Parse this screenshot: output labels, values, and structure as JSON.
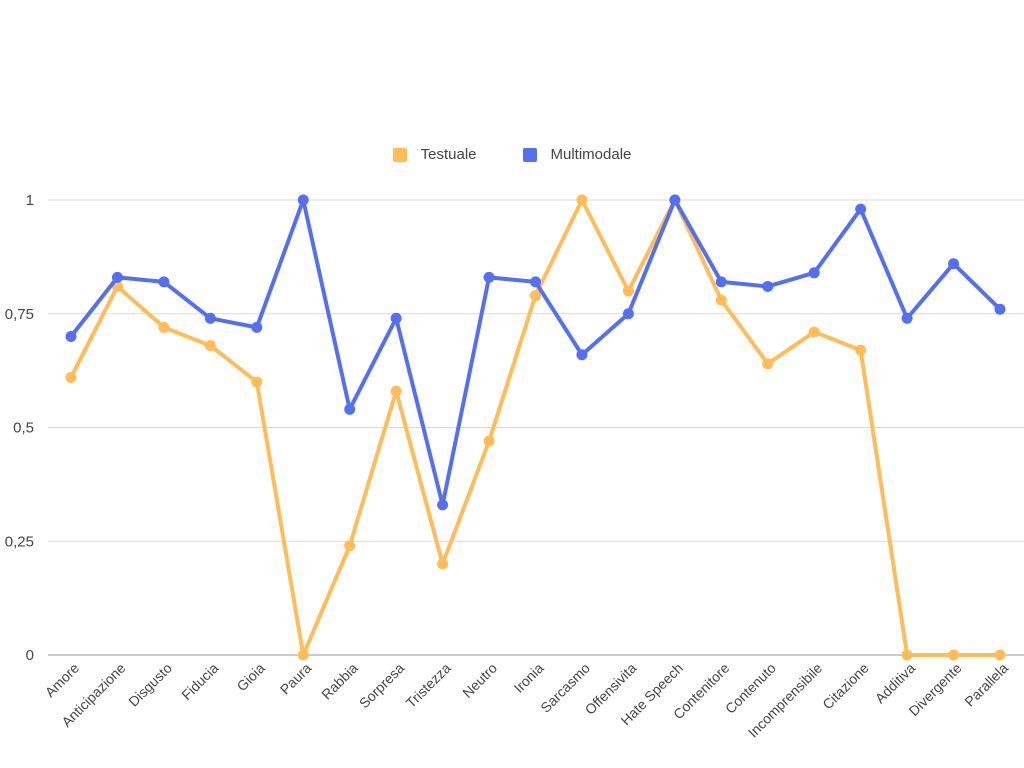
{
  "chart_data": {
    "type": "line",
    "categories": [
      "Amore",
      "Anticipazione",
      "Disgusto",
      "Fiducia",
      "Gioia",
      "Paura",
      "Rabbia",
      "Sorpresa",
      "Tristezza",
      "Neutro",
      "Ironia",
      "Sarcasmo",
      "Offensivita",
      "Hate Speech",
      "Contenitore",
      "Contenuto",
      "Incomprensibile",
      "Citazione",
      "Additiva",
      "Divergente",
      "Parallela"
    ],
    "series": [
      {
        "name": "Testuale",
        "color": "#FFBC57",
        "values": [
          0.61,
          0.81,
          0.72,
          0.68,
          0.6,
          0.0,
          0.24,
          0.58,
          0.2,
          0.47,
          0.79,
          1.0,
          0.8,
          1.0,
          0.78,
          0.64,
          0.71,
          0.67,
          0.0,
          0.0,
          0.0
        ]
      },
      {
        "name": "Multimodale",
        "color": "#5470F2",
        "values": [
          0.7,
          0.83,
          0.82,
          0.74,
          0.72,
          1.0,
          0.54,
          0.74,
          0.33,
          0.83,
          0.82,
          0.66,
          0.75,
          1.0,
          0.82,
          0.81,
          0.84,
          0.98,
          0.74,
          0.86,
          0.76
        ]
      }
    ],
    "y_ticks": [
      "0",
      "0,25",
      "0,5",
      "0,75",
      "1"
    ],
    "ylim": [
      0,
      1
    ],
    "grid": true,
    "legend_position": "top"
  }
}
